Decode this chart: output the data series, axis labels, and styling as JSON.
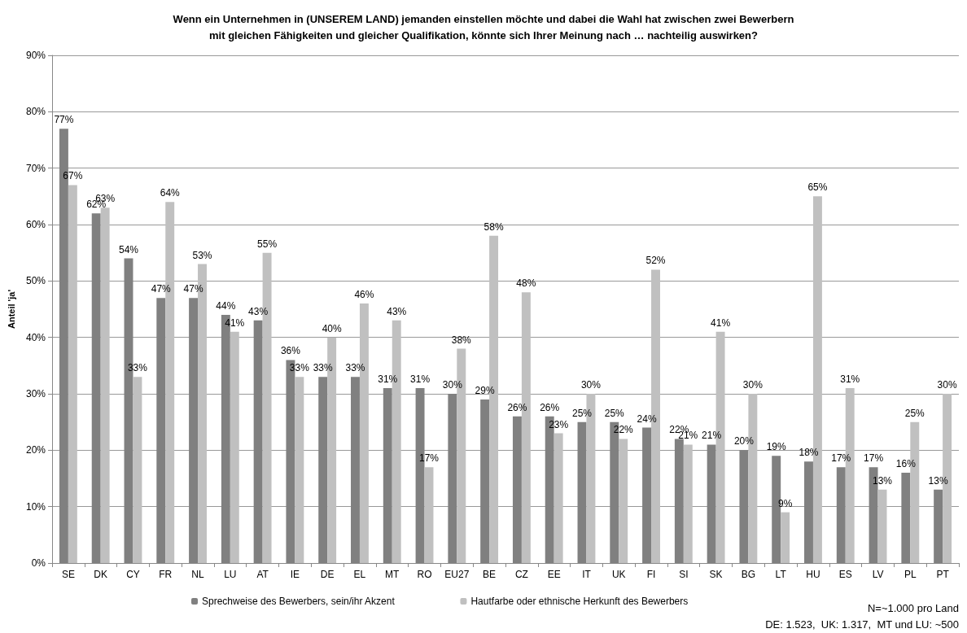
{
  "chart_data": {
    "type": "bar",
    "title": "Wenn ein Unternehmen in (UNSEREM LAND) jemanden einstellen möchte und dabei die Wahl hat zwischen zwei Bewerbern\nmit gleichen Fähigkeiten und gleicher Qualifikation, könnte sich Ihrer Meinung nach … nachteilig auswirken?",
    "ylabel": "Anteil 'ja'",
    "categories": [
      "SE",
      "DK",
      "CY",
      "FR",
      "NL",
      "LU",
      "AT",
      "IE",
      "DE",
      "EL",
      "MT",
      "RO",
      "EU27",
      "BE",
      "CZ",
      "EE",
      "IT",
      "UK",
      "FI",
      "SI",
      "SK",
      "BG",
      "LT",
      "HU",
      "ES",
      "LV",
      "PL",
      "PT"
    ],
    "series": [
      {
        "name": "Sprechweise des Bewerbers, sein/ihr Akzent",
        "color": "#808080",
        "values": [
          77,
          62,
          54,
          47,
          47,
          44,
          43,
          36,
          33,
          33,
          31,
          31,
          30,
          29,
          26,
          26,
          25,
          25,
          24,
          22,
          21,
          20,
          19,
          18,
          17,
          17,
          16,
          13
        ],
        "value_labels": [
          "77%",
          "62%",
          "54%",
          "47%",
          "47%",
          "44%",
          "43%",
          "36%",
          "33%",
          "33%",
          "31%",
          "31%",
          "30%",
          "29%",
          "26%",
          "26%",
          "25%",
          "25%",
          "24%",
          "22%",
          "21%",
          "20%",
          "19%",
          "18%",
          "17%",
          "17%",
          "16%",
          "13%"
        ]
      },
      {
        "name": "Hautfarbe oder ethnische Herkunft des Bewerbers",
        "color": "#c0c0c0",
        "values": [
          67,
          63,
          33,
          64,
          53,
          41,
          55,
          33,
          40,
          46,
          43,
          17,
          38,
          58,
          48,
          23,
          30,
          22,
          52,
          21,
          41,
          30,
          9,
          65,
          31,
          13,
          25,
          30
        ],
        "value_labels": [
          "67%",
          "63%",
          "33%",
          "64%",
          "53%",
          "41%",
          "55%",
          "33%",
          "40%",
          "46%",
          "43%",
          "17%",
          "38%",
          "58%",
          "48%",
          "23%",
          "30%",
          "22%",
          "52%",
          "21%",
          "41%",
          "30%",
          "9%",
          "65%",
          "31%",
          "13%",
          "25%",
          "30%"
        ]
      }
    ],
    "ylim": [
      0,
      90
    ],
    "yticks": [
      {
        "value": 0,
        "label": "0%"
      },
      {
        "value": 10,
        "label": "10%"
      },
      {
        "value": 20,
        "label": "20%"
      },
      {
        "value": 30,
        "label": "30%"
      },
      {
        "value": 40,
        "label": "40%"
      },
      {
        "value": 50,
        "label": "50%"
      },
      {
        "value": 60,
        "label": "60%"
      },
      {
        "value": 70,
        "label": "70%"
      },
      {
        "value": 80,
        "label": "80%"
      },
      {
        "value": 90,
        "label": "90%"
      }
    ],
    "grid": "y",
    "legend": "bottom",
    "annotations": [
      "N=~1.000 pro Land",
      "DE: 1.523,  UK: 1.317,  MT und LU: ~500"
    ]
  }
}
